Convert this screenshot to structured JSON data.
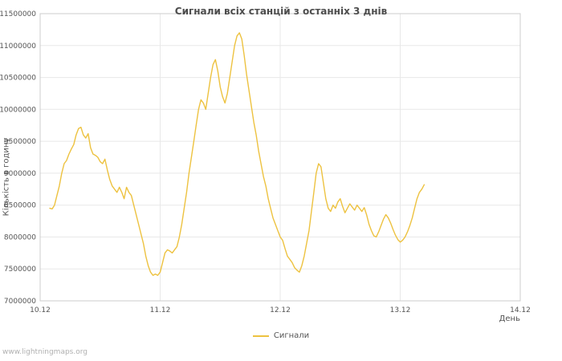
{
  "watermark": "www.lightningmaps.org",
  "chart_data": {
    "type": "line",
    "title": "Сигнали всіх станцій з останніх 3 днів",
    "xlabel": "День",
    "ylabel": "Кількість в годину",
    "grid": true,
    "legend_position": "bottom",
    "x_domain": [
      0,
      4
    ],
    "y_domain": [
      7000000,
      11500000
    ],
    "x_ticks": [
      {
        "t": 0,
        "label": "10.12"
      },
      {
        "t": 1,
        "label": "11.12"
      },
      {
        "t": 2,
        "label": "12.12"
      },
      {
        "t": 3,
        "label": "13.12"
      },
      {
        "t": 4,
        "label": "14.12"
      }
    ],
    "y_ticks": [
      {
        "v": 7000000,
        "label": "7000000"
      },
      {
        "v": 7500000,
        "label": "7500000"
      },
      {
        "v": 8000000,
        "label": "8000000"
      },
      {
        "v": 8500000,
        "label": "8500000"
      },
      {
        "v": 9000000,
        "label": "9000000"
      },
      {
        "v": 9500000,
        "label": "9500000"
      },
      {
        "v": 10000000,
        "label": "10000000"
      },
      {
        "v": 10500000,
        "label": "10500000"
      },
      {
        "v": 11000000,
        "label": "11000000"
      },
      {
        "v": 11500000,
        "label": "11500000"
      }
    ],
    "series": [
      {
        "name": "Сигнали",
        "color": "#edc240",
        "points": [
          [
            0.08,
            8450000
          ],
          [
            0.1,
            8440000
          ],
          [
            0.12,
            8500000
          ],
          [
            0.14,
            8650000
          ],
          [
            0.16,
            8800000
          ],
          [
            0.18,
            9000000
          ],
          [
            0.2,
            9150000
          ],
          [
            0.22,
            9200000
          ],
          [
            0.24,
            9300000
          ],
          [
            0.26,
            9380000
          ],
          [
            0.28,
            9450000
          ],
          [
            0.3,
            9600000
          ],
          [
            0.32,
            9700000
          ],
          [
            0.34,
            9720000
          ],
          [
            0.36,
            9600000
          ],
          [
            0.38,
            9550000
          ],
          [
            0.4,
            9620000
          ],
          [
            0.42,
            9400000
          ],
          [
            0.44,
            9300000
          ],
          [
            0.46,
            9280000
          ],
          [
            0.48,
            9250000
          ],
          [
            0.5,
            9180000
          ],
          [
            0.52,
            9150000
          ],
          [
            0.54,
            9220000
          ],
          [
            0.56,
            9050000
          ],
          [
            0.58,
            8900000
          ],
          [
            0.6,
            8800000
          ],
          [
            0.62,
            8750000
          ],
          [
            0.64,
            8700000
          ],
          [
            0.66,
            8780000
          ],
          [
            0.68,
            8700000
          ],
          [
            0.7,
            8600000
          ],
          [
            0.72,
            8780000
          ],
          [
            0.74,
            8700000
          ],
          [
            0.76,
            8650000
          ],
          [
            0.78,
            8500000
          ],
          [
            0.8,
            8350000
          ],
          [
            0.82,
            8200000
          ],
          [
            0.84,
            8050000
          ],
          [
            0.86,
            7900000
          ],
          [
            0.88,
            7700000
          ],
          [
            0.9,
            7550000
          ],
          [
            0.92,
            7450000
          ],
          [
            0.94,
            7400000
          ],
          [
            0.96,
            7420000
          ],
          [
            0.98,
            7400000
          ],
          [
            1.0,
            7450000
          ],
          [
            1.02,
            7600000
          ],
          [
            1.04,
            7750000
          ],
          [
            1.06,
            7800000
          ],
          [
            1.08,
            7780000
          ],
          [
            1.1,
            7750000
          ],
          [
            1.12,
            7800000
          ],
          [
            1.14,
            7850000
          ],
          [
            1.16,
            8000000
          ],
          [
            1.18,
            8200000
          ],
          [
            1.2,
            8450000
          ],
          [
            1.22,
            8700000
          ],
          [
            1.24,
            9000000
          ],
          [
            1.26,
            9250000
          ],
          [
            1.28,
            9500000
          ],
          [
            1.3,
            9750000
          ],
          [
            1.32,
            10000000
          ],
          [
            1.34,
            10150000
          ],
          [
            1.36,
            10100000
          ],
          [
            1.38,
            10000000
          ],
          [
            1.4,
            10250000
          ],
          [
            1.42,
            10500000
          ],
          [
            1.44,
            10700000
          ],
          [
            1.46,
            10780000
          ],
          [
            1.48,
            10600000
          ],
          [
            1.5,
            10350000
          ],
          [
            1.52,
            10200000
          ],
          [
            1.54,
            10100000
          ],
          [
            1.56,
            10250000
          ],
          [
            1.58,
            10500000
          ],
          [
            1.6,
            10750000
          ],
          [
            1.62,
            11000000
          ],
          [
            1.64,
            11150000
          ],
          [
            1.66,
            11200000
          ],
          [
            1.68,
            11100000
          ],
          [
            1.7,
            10850000
          ],
          [
            1.72,
            10550000
          ],
          [
            1.74,
            10300000
          ],
          [
            1.76,
            10050000
          ],
          [
            1.78,
            9800000
          ],
          [
            1.8,
            9600000
          ],
          [
            1.82,
            9350000
          ],
          [
            1.84,
            9150000
          ],
          [
            1.86,
            8950000
          ],
          [
            1.88,
            8800000
          ],
          [
            1.9,
            8600000
          ],
          [
            1.92,
            8450000
          ],
          [
            1.94,
            8300000
          ],
          [
            1.96,
            8200000
          ],
          [
            1.98,
            8100000
          ],
          [
            2.0,
            8000000
          ],
          [
            2.02,
            7950000
          ],
          [
            2.04,
            7820000
          ],
          [
            2.06,
            7700000
          ],
          [
            2.08,
            7650000
          ],
          [
            2.1,
            7600000
          ],
          [
            2.12,
            7520000
          ],
          [
            2.14,
            7480000
          ],
          [
            2.16,
            7450000
          ],
          [
            2.18,
            7550000
          ],
          [
            2.2,
            7700000
          ],
          [
            2.22,
            7900000
          ],
          [
            2.24,
            8100000
          ],
          [
            2.26,
            8400000
          ],
          [
            2.28,
            8700000
          ],
          [
            2.3,
            9000000
          ],
          [
            2.32,
            9150000
          ],
          [
            2.34,
            9100000
          ],
          [
            2.36,
            8850000
          ],
          [
            2.38,
            8600000
          ],
          [
            2.4,
            8450000
          ],
          [
            2.42,
            8400000
          ],
          [
            2.44,
            8500000
          ],
          [
            2.46,
            8450000
          ],
          [
            2.48,
            8550000
          ],
          [
            2.5,
            8600000
          ],
          [
            2.52,
            8480000
          ],
          [
            2.54,
            8380000
          ],
          [
            2.56,
            8450000
          ],
          [
            2.58,
            8520000
          ],
          [
            2.6,
            8470000
          ],
          [
            2.62,
            8420000
          ],
          [
            2.64,
            8500000
          ],
          [
            2.66,
            8450000
          ],
          [
            2.68,
            8400000
          ],
          [
            2.7,
            8460000
          ],
          [
            2.72,
            8350000
          ],
          [
            2.74,
            8200000
          ],
          [
            2.76,
            8100000
          ],
          [
            2.78,
            8020000
          ],
          [
            2.8,
            8000000
          ],
          [
            2.82,
            8080000
          ],
          [
            2.84,
            8180000
          ],
          [
            2.86,
            8280000
          ],
          [
            2.88,
            8350000
          ],
          [
            2.9,
            8300000
          ],
          [
            2.92,
            8220000
          ],
          [
            2.94,
            8120000
          ],
          [
            2.96,
            8030000
          ],
          [
            2.98,
            7960000
          ],
          [
            3.0,
            7920000
          ],
          [
            3.02,
            7950000
          ],
          [
            3.04,
            8000000
          ],
          [
            3.06,
            8080000
          ],
          [
            3.08,
            8180000
          ],
          [
            3.1,
            8300000
          ],
          [
            3.12,
            8450000
          ],
          [
            3.14,
            8600000
          ],
          [
            3.16,
            8700000
          ],
          [
            3.18,
            8750000
          ],
          [
            3.2,
            8820000
          ]
        ]
      }
    ]
  }
}
